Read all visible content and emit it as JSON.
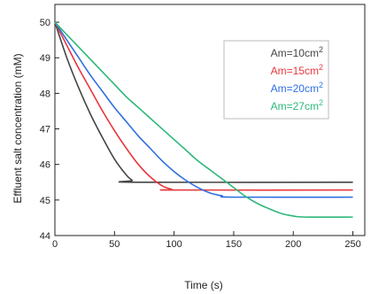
{
  "chart_data": {
    "type": "line",
    "title": "",
    "xlabel": "Time (s)",
    "ylabel": "Effluent salt concentration (mM)",
    "xlim": [
      0,
      260
    ],
    "ylim": [
      44,
      50.5
    ],
    "xticks": [
      0,
      50,
      100,
      150,
      200,
      250
    ],
    "xtick_labels": [
      "0",
      "50",
      "100",
      "150",
      "200",
      "250"
    ],
    "yticks": [
      44,
      45,
      46,
      47,
      48,
      49,
      50
    ],
    "ytick_labels": [
      "44",
      "45",
      "46",
      "47",
      "48",
      "49",
      "50"
    ],
    "grid": false,
    "legend_position": "top-right",
    "series": [
      {
        "name": "Am=10cm²",
        "legend_main": "Am=10cm",
        "legend_sup": "2",
        "color": "#444444",
        "x": [
          0,
          10,
          20,
          30,
          40,
          50,
          60,
          65,
          68,
          250
        ],
        "y": [
          50.0,
          49.0,
          48.15,
          47.4,
          46.75,
          46.15,
          45.7,
          45.55,
          45.5,
          45.5
        ]
      },
      {
        "name": "Am=15cm²",
        "legend_main": "Am=15cm",
        "legend_sup": "2",
        "color": "#e8373c",
        "x": [
          0,
          10,
          20,
          30,
          40,
          50,
          60,
          70,
          80,
          90,
          98,
          100,
          250
        ],
        "y": [
          50.0,
          49.35,
          48.7,
          48.1,
          47.5,
          46.95,
          46.45,
          46.0,
          45.65,
          45.4,
          45.3,
          45.28,
          45.28
        ]
      },
      {
        "name": "Am=20cm²",
        "legend_main": "Am=20cm",
        "legend_sup": "2",
        "color": "#2f6fe0",
        "x": [
          0,
          10,
          20,
          30,
          40,
          50,
          60,
          70,
          80,
          90,
          100,
          110,
          120,
          130,
          140,
          150,
          250
        ],
        "y": [
          50.0,
          49.5,
          49.0,
          48.5,
          48.05,
          47.6,
          47.2,
          46.8,
          46.45,
          46.1,
          45.8,
          45.55,
          45.35,
          45.2,
          45.12,
          45.08,
          45.08
        ]
      },
      {
        "name": "Am=27cm²",
        "legend_main": "Am=27cm",
        "legend_sup": "2",
        "color": "#2db87a",
        "x": [
          0,
          10,
          20,
          30,
          40,
          50,
          60,
          70,
          80,
          90,
          100,
          110,
          120,
          130,
          140,
          150,
          160,
          170,
          180,
          190,
          200,
          210,
          250
        ],
        "y": [
          50.0,
          49.65,
          49.3,
          48.95,
          48.6,
          48.25,
          47.9,
          47.6,
          47.3,
          47.0,
          46.7,
          46.4,
          46.1,
          45.85,
          45.6,
          45.35,
          45.1,
          44.9,
          44.75,
          44.62,
          44.55,
          44.52,
          44.52
        ]
      }
    ]
  }
}
